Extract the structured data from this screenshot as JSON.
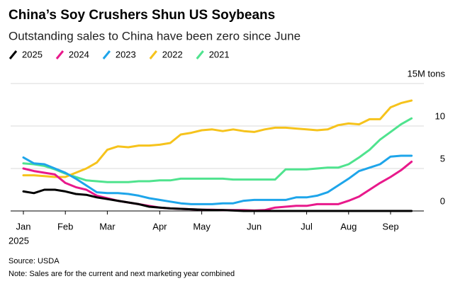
{
  "chart_data": {
    "type": "line",
    "title": "China’s Soy Crushers Shun US Soybeans",
    "subtitle": "Outstanding sales to China have been zero since June",
    "categories": [
      "Jan",
      null,
      null,
      null,
      "Feb",
      null,
      null,
      null,
      "Mar",
      null,
      null,
      null,
      null,
      "Apr",
      null,
      null,
      null,
      "May",
      null,
      null,
      null,
      null,
      "Jun",
      null,
      null,
      null,
      null,
      "Jul",
      null,
      null,
      null,
      "Aug",
      null,
      null,
      null,
      "Sep",
      null,
      null
    ],
    "year_label": "2025",
    "series": [
      {
        "name": "2025",
        "color": "#000000",
        "values": [
          2.3,
          2.1,
          2.5,
          2.5,
          2.3,
          2.0,
          1.9,
          1.6,
          1.4,
          1.2,
          1.0,
          0.8,
          0.5,
          0.4,
          0.3,
          0.25,
          0.2,
          0.15,
          0.1,
          0.1,
          0.05,
          0,
          0,
          0,
          0,
          0,
          0,
          0,
          0,
          0,
          0,
          0,
          0,
          0,
          0,
          0,
          0,
          0
        ]
      },
      {
        "name": "2024",
        "color": "#e8198b",
        "values": [
          5.0,
          4.7,
          4.5,
          4.3,
          3.3,
          2.8,
          2.5,
          1.8,
          1.5,
          1.2,
          1.0,
          0.8,
          0.6,
          0.4,
          0.3,
          0.25,
          0.2,
          0.15,
          0.15,
          0.1,
          0.1,
          0.1,
          0.05,
          0.1,
          0.4,
          0.5,
          0.6,
          0.6,
          0.8,
          0.8,
          0.8,
          1.2,
          1.7,
          2.5,
          3.3,
          4.0,
          4.8,
          5.8
        ]
      },
      {
        "name": "2023",
        "color": "#1ea5ea",
        "values": [
          6.3,
          5.6,
          5.5,
          5.0,
          4.5,
          3.8,
          3.0,
          2.2,
          2.1,
          2.1,
          2.0,
          1.8,
          1.5,
          1.3,
          1.1,
          0.9,
          0.8,
          0.8,
          0.8,
          0.9,
          0.9,
          1.2,
          1.3,
          1.3,
          1.3,
          1.3,
          1.6,
          1.6,
          1.8,
          2.2,
          3.0,
          3.8,
          4.7,
          5.1,
          5.5,
          6.4,
          6.5,
          6.5
        ]
      },
      {
        "name": "2022",
        "color": "#f6c31c",
        "values": [
          4.2,
          4.2,
          4.1,
          4.0,
          4.0,
          4.5,
          5.0,
          5.7,
          7.2,
          7.6,
          7.5,
          7.7,
          7.7,
          7.8,
          8.0,
          9.0,
          9.2,
          9.5,
          9.6,
          9.4,
          9.6,
          9.4,
          9.3,
          9.6,
          9.8,
          9.8,
          9.7,
          9.6,
          9.5,
          9.6,
          10.1,
          10.3,
          10.2,
          10.8,
          10.8,
          12.2,
          12.7,
          13.0
        ]
      },
      {
        "name": "2021",
        "color": "#4fe38e",
        "values": [
          5.6,
          5.5,
          5.3,
          4.9,
          4.4,
          4.0,
          3.6,
          3.5,
          3.4,
          3.4,
          3.4,
          3.5,
          3.5,
          3.6,
          3.6,
          3.8,
          3.8,
          3.8,
          3.8,
          3.8,
          3.7,
          3.7,
          3.7,
          3.7,
          3.7,
          4.9,
          4.9,
          4.9,
          5.0,
          5.1,
          5.1,
          5.5,
          6.3,
          7.2,
          8.4,
          9.3,
          10.2,
          10.9
        ]
      }
    ],
    "ylim": [
      0,
      15
    ],
    "yticks": [
      0,
      5,
      10,
      {
        "value": 15,
        "label": "15M tons"
      }
    ],
    "grid": true,
    "source": "Source: USDA",
    "note": "Note: Sales are for the current and next marketing year combined"
  }
}
